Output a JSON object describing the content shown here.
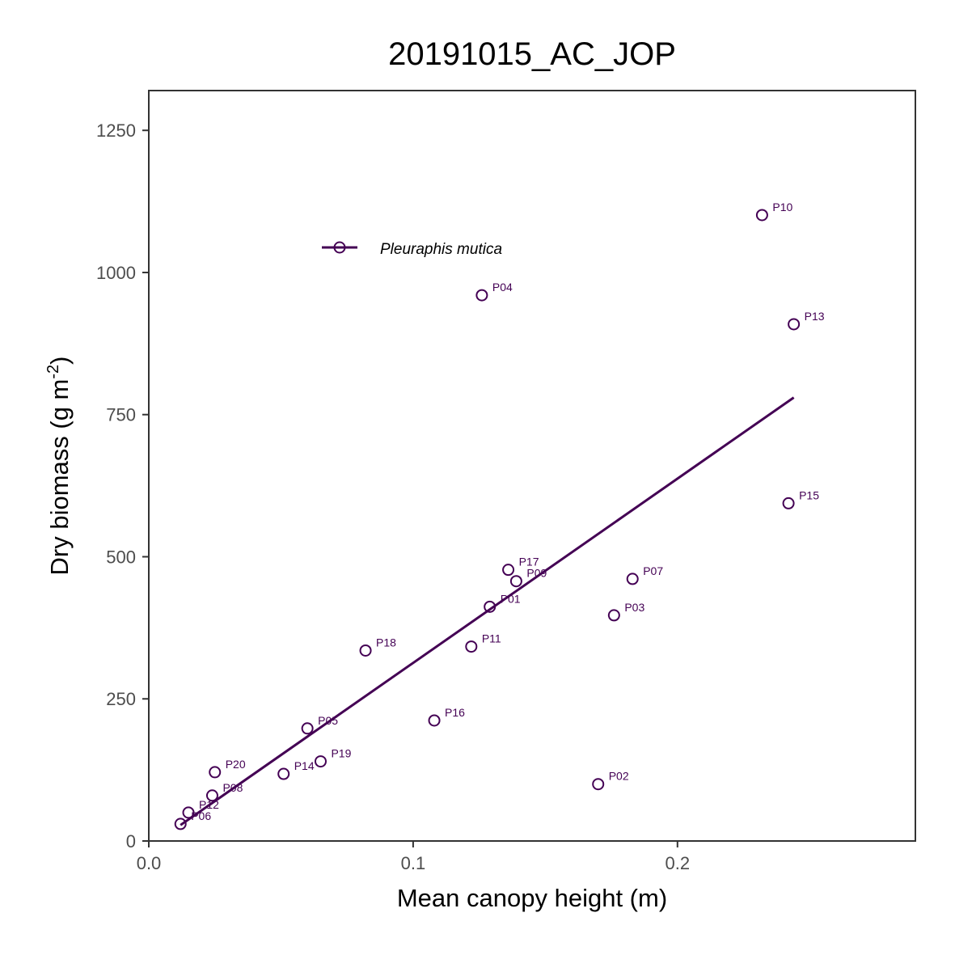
{
  "chart_data": {
    "type": "scatter",
    "title": "20191015_AC_JOP",
    "xlabel": "Mean canopy height (m)",
    "ylabel_main": "Dry biomass (g m",
    "ylabel_sup": "-2",
    "ylabel_end": ")",
    "xlim": [
      0,
      0.29
    ],
    "ylim": [
      0,
      1320
    ],
    "x_ticks": [
      0.0,
      0.1,
      0.2
    ],
    "x_tick_labels": [
      "0.0",
      "0.1",
      "0.2"
    ],
    "y_ticks": [
      0,
      250,
      500,
      750,
      1000,
      1250
    ],
    "y_tick_labels": [
      "0",
      "250",
      "500",
      "750",
      "1000",
      "1250"
    ],
    "grid": false,
    "legend_position": "top-left",
    "color": "#440154",
    "series": [
      {
        "name": "Pleuraphis mutica",
        "points": [
          {
            "label": "P01",
            "x": 0.129,
            "y": 412
          },
          {
            "label": "P02",
            "x": 0.17,
            "y": 100
          },
          {
            "label": "P03",
            "x": 0.176,
            "y": 397
          },
          {
            "label": "P04",
            "x": 0.126,
            "y": 960
          },
          {
            "label": "P05",
            "x": 0.06,
            "y": 198
          },
          {
            "label": "P06",
            "x": 0.012,
            "y": 30
          },
          {
            "label": "P07",
            "x": 0.183,
            "y": 461
          },
          {
            "label": "P08",
            "x": 0.024,
            "y": 80
          },
          {
            "label": "P09",
            "x": 0.139,
            "y": 457
          },
          {
            "label": "P10",
            "x": 0.232,
            "y": 1101
          },
          {
            "label": "P11",
            "x": 0.122,
            "y": 342
          },
          {
            "label": "P12",
            "x": 0.015,
            "y": 50
          },
          {
            "label": "P13",
            "x": 0.244,
            "y": 909
          },
          {
            "label": "P14",
            "x": 0.051,
            "y": 118
          },
          {
            "label": "P15",
            "x": 0.242,
            "y": 594
          },
          {
            "label": "P16",
            "x": 0.108,
            "y": 212
          },
          {
            "label": "P17",
            "x": 0.136,
            "y": 477
          },
          {
            "label": "P18",
            "x": 0.082,
            "y": 335
          },
          {
            "label": "P19",
            "x": 0.065,
            "y": 140
          },
          {
            "label": "P20",
            "x": 0.025,
            "y": 121
          }
        ],
        "fit_line": {
          "x": [
            0.012,
            0.244
          ],
          "y": [
            28,
            780
          ]
        }
      }
    ]
  }
}
